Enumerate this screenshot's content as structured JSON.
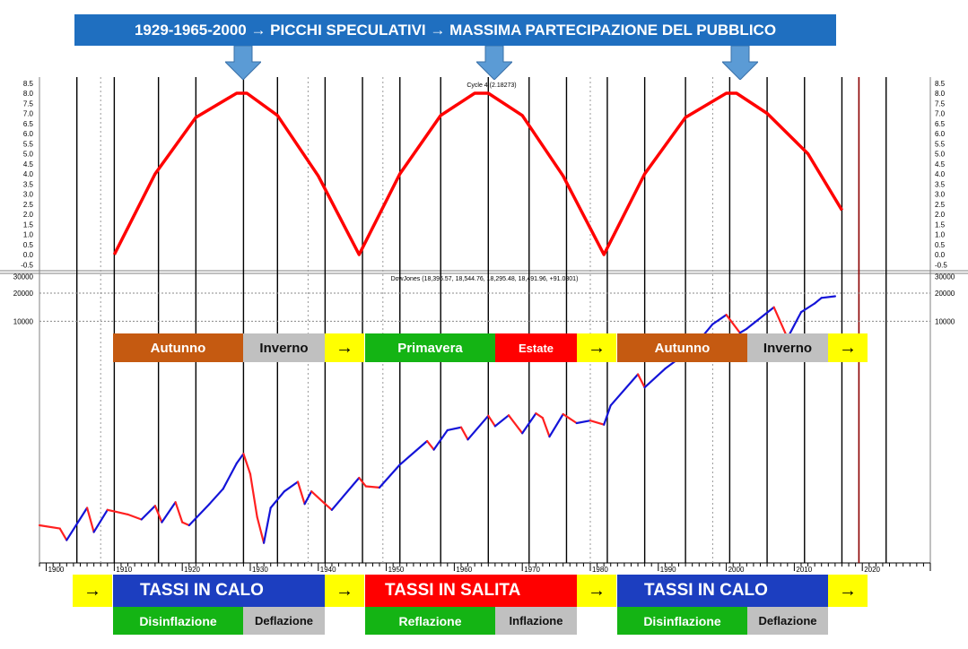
{
  "title": "1929-1965-2000 → PICCHI SPECULATIVI → MASSIMA PARTECIPAZIONE DEL PUBBLICO",
  "colors": {
    "cycle_line": "#ff0000",
    "dow_line": "#1414d8",
    "dow_down": "#ff2020",
    "title_bar": "#1f6fc0",
    "autunno": "#c55a11",
    "inverno": "#c0c0c0",
    "primavera": "#14b414",
    "estate": "#ff0000",
    "arrow_box": "#ffff00",
    "rates_blue": "#1c3ec0",
    "rates_red": "#ff0000"
  },
  "chart_data": [
    {
      "type": "line",
      "title": "Cycle 4 (2.18273)",
      "y_ticks": [
        "8.5",
        "8.0",
        "7.5",
        "7.0",
        "6.5",
        "6.0",
        "5.5",
        "5.0",
        "4.5",
        "4.0",
        "3.5",
        "3.0",
        "2.5",
        "2.0",
        "1.5",
        "1.0",
        "0.5",
        "0.0",
        "-0.5"
      ],
      "ylim": [
        -0.5,
        8.5
      ],
      "series": [
        {
          "x": [
            1910,
            1916,
            1922,
            1928,
            1929.5,
            1934,
            1940,
            1946,
            1952,
            1958,
            1963,
            1965,
            1970,
            1976,
            1982,
            1988,
            1994,
            2000,
            2001.5,
            2006,
            2012,
            2017
          ],
          "values": [
            0.0,
            4.0,
            6.8,
            8.0,
            8.0,
            6.9,
            3.9,
            0.0,
            4.0,
            6.9,
            8.0,
            8.0,
            6.9,
            3.9,
            0.0,
            4.0,
            6.8,
            8.0,
            8.0,
            7.0,
            5.0,
            2.2
          ]
        }
      ],
      "peaks": [
        1929,
        1965,
        2000
      ]
    },
    {
      "type": "line",
      "title": "DowJones (18,396.57, 18,544.76, 18,295.48, 18,491.96, +91.0801)",
      "y_ticks": [
        "30000",
        "20000",
        "10000"
      ],
      "x_ticks": [
        "1900",
        "1910",
        "1920",
        "1930",
        "1940",
        "1950",
        "1960",
        "1970",
        "1980",
        "1990",
        "2000",
        "2010",
        "2020"
      ],
      "xlim": [
        1899,
        2030
      ],
      "series": [
        {
          "x": [
            1899,
            1902,
            1903,
            1906,
            1907,
            1909,
            1912,
            1914,
            1916,
            1917,
            1919,
            1920,
            1921,
            1924,
            1926,
            1928,
            1929,
            1930,
            1931,
            1932,
            1933,
            1935,
            1937,
            1938,
            1939,
            1941,
            1942,
            1946,
            1947,
            1949,
            1952,
            1956,
            1957,
            1959,
            1961,
            1962,
            1965,
            1966,
            1968,
            1970,
            1972,
            1973,
            1974,
            1976,
            1978,
            1980,
            1982,
            1983,
            1987,
            1988,
            1991,
            1995,
            1998,
            2000,
            2002,
            2003,
            2007,
            2009,
            2011,
            2013,
            2014,
            2016
          ],
          "values": [
            65,
            60,
            45,
            100,
            55,
            95,
            85,
            75,
            105,
            70,
            115,
            70,
            65,
            110,
            160,
            300,
            380,
            230,
            80,
            42,
            100,
            150,
            190,
            110,
            150,
            110,
            95,
            210,
            170,
            165,
            290,
            520,
            420,
            680,
            730,
            540,
            970,
            750,
            980,
            630,
            1030,
            920,
            580,
            1010,
            810,
            860,
            780,
            1250,
            2700,
            1950,
            3100,
            5100,
            9300,
            11700,
            7500,
            8300,
            14100,
            6600,
            12500,
            15500,
            17800,
            18500
          ]
        }
      ]
    }
  ],
  "seasons": [
    {
      "label": "Autunno"
    },
    {
      "label": "Inverno"
    },
    {
      "label": "→"
    },
    {
      "label": "Primavera"
    },
    {
      "label": "Estate"
    },
    {
      "label": "→"
    },
    {
      "label": "Autunno"
    },
    {
      "label": "Inverno"
    },
    {
      "label": "→"
    }
  ],
  "rates": [
    {
      "label": "→"
    },
    {
      "label": "TASSI IN CALO"
    },
    {
      "label": "→"
    },
    {
      "label": "TASSI IN SALITA"
    },
    {
      "label": "→"
    },
    {
      "label": "TASSI IN CALO"
    },
    {
      "label": "→"
    }
  ],
  "phases": [
    {
      "label": "Disinflazione"
    },
    {
      "label": "Deflazione"
    },
    {
      "label": "Reflazione"
    },
    {
      "label": "Inflazione"
    },
    {
      "label": "Disinflazione"
    },
    {
      "label": "Deflazione"
    }
  ]
}
